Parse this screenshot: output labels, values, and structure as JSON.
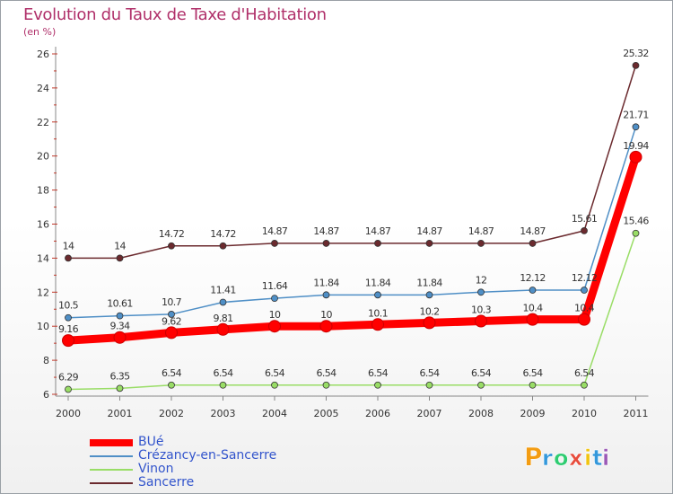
{
  "title": "Evolution du Taux de Taxe d'Habitation",
  "subtitle": "(en %)",
  "chart_data": {
    "type": "line",
    "title": "Evolution du Taux de Taxe d'Habitation",
    "subtitle": "(en %)",
    "xlabel": "",
    "ylabel": "(en %)",
    "categories": [
      "2000",
      "2001",
      "2002",
      "2003",
      "2004",
      "2005",
      "2006",
      "2007",
      "2008",
      "2009",
      "2010",
      "2011"
    ],
    "ylim": [
      6,
      26
    ],
    "yticks": [
      6,
      8,
      10,
      12,
      14,
      16,
      18,
      20,
      22,
      24,
      26
    ],
    "grid": false,
    "legend_position": "bottom-left",
    "series": [
      {
        "name": "BUé",
        "color": "#ff0000",
        "values": [
          9.16,
          9.34,
          9.62,
          9.81,
          10,
          10,
          10.1,
          10.2,
          10.3,
          10.4,
          10.4,
          19.94
        ],
        "labels": [
          "9.16",
          "9.34",
          "9.62",
          "9.81",
          "10",
          "10",
          "10.1",
          "10.2",
          "10.3",
          "10.4",
          "10.4",
          "19.94"
        ]
      },
      {
        "name": "Crézancy-en-Sancerre",
        "color": "#4f8fc6",
        "values": [
          10.5,
          10.61,
          10.7,
          11.41,
          11.64,
          11.84,
          11.84,
          11.84,
          12,
          12.12,
          12.12,
          21.71
        ],
        "labels": [
          "10.5",
          "10.61",
          "10.7",
          "11.41",
          "11.64",
          "11.84",
          "11.84",
          "11.84",
          "12",
          "12.12",
          "12.12",
          "21.71"
        ]
      },
      {
        "name": "Vinon",
        "color": "#99dd66",
        "values": [
          6.29,
          6.35,
          6.54,
          6.54,
          6.54,
          6.54,
          6.54,
          6.54,
          6.54,
          6.54,
          6.54,
          15.46
        ],
        "labels": [
          "6.29",
          "6.35",
          "6.54",
          "6.54",
          "6.54",
          "6.54",
          "6.54",
          "6.54",
          "6.54",
          "6.54",
          "6.54",
          "15.46"
        ]
      },
      {
        "name": "Sancerre",
        "color": "#6b2a2e",
        "values": [
          14,
          14,
          14.72,
          14.72,
          14.87,
          14.87,
          14.87,
          14.87,
          14.87,
          14.87,
          15.61,
          25.32
        ],
        "labels": [
          "14",
          "14",
          "14.72",
          "14.72",
          "14.87",
          "14.87",
          "14.87",
          "14.87",
          "14.87",
          "14.87",
          "15.61",
          "25.32"
        ]
      }
    ]
  },
  "logo": {
    "letters": [
      "P",
      "r",
      "o",
      "x",
      "i",
      "t",
      "i"
    ],
    "colors": [
      "#f39c12",
      "#3498db",
      "#2ecc71",
      "#e74c3c",
      "#f1c40f",
      "#3498db",
      "#9b59b6"
    ]
  }
}
